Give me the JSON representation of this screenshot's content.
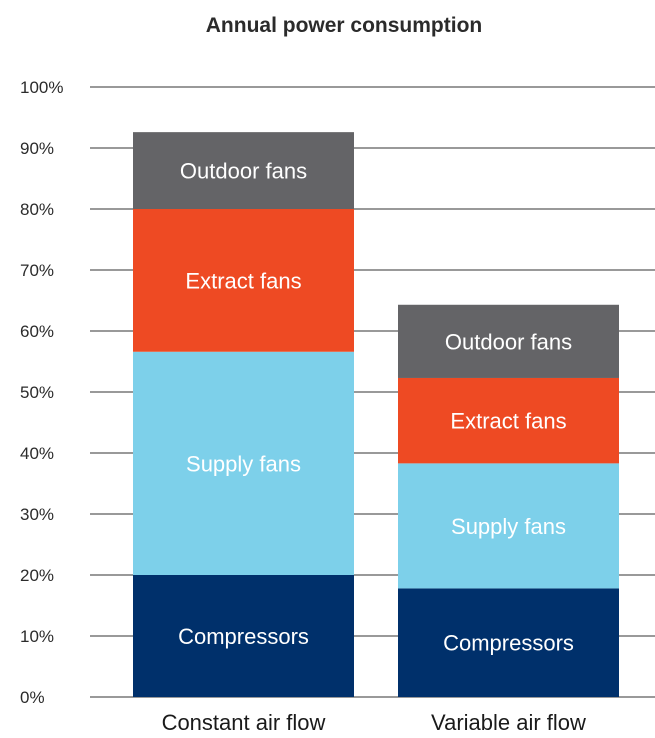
{
  "chart_data": {
    "type": "bar",
    "stacked": true,
    "title": "Annual power consumption",
    "xlabel": "",
    "ylabel": "",
    "ylim": [
      0,
      100
    ],
    "yticks": [
      0,
      10,
      20,
      30,
      40,
      50,
      60,
      70,
      80,
      90,
      100
    ],
    "ytick_suffix": "%",
    "grid": true,
    "categories": [
      "Constant air flow",
      "Variable air flow"
    ],
    "series": [
      {
        "name": "Compressors",
        "color": "#00306b",
        "values": [
          20,
          17.8
        ]
      },
      {
        "name": "Supply fans",
        "color": "#7dd0ea",
        "values": [
          36.6,
          20.5
        ]
      },
      {
        "name": "Extract fans",
        "color": "#ee4a23",
        "values": [
          23.4,
          14
        ]
      },
      {
        "name": "Outdoor fans",
        "color": "#646467",
        "values": [
          12.6,
          12
        ]
      }
    ]
  }
}
